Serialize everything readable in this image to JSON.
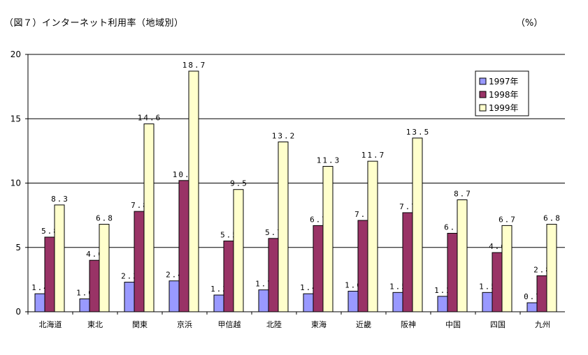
{
  "header": {
    "title": "（図７）インターネット利用率（地域別）",
    "unit": "（%）"
  },
  "chart_data": {
    "type": "bar",
    "title": "（図７）インターネット利用率（地域別）",
    "xlabel": "",
    "ylabel": "",
    "ylim": [
      0,
      20
    ],
    "yticks": [
      0,
      5,
      10,
      15,
      20
    ],
    "grid": true,
    "legend_position": "top-right",
    "categories": [
      "北海道",
      "東北",
      "関東",
      "京浜",
      "甲信越",
      "北陸",
      "東海",
      "近畿",
      "阪神",
      "中国",
      "四国",
      "九州"
    ],
    "series": [
      {
        "name": "1997年",
        "color": "#9999ff",
        "values": [
          1.4,
          1.0,
          2.3,
          2.4,
          1.3,
          1.7,
          1.4,
          1.6,
          1.5,
          1.2,
          1.5,
          0.7
        ],
        "labels": [
          "1.4",
          "1.0",
          "2.3",
          "2.4",
          "1.3",
          "1.7",
          "1.4",
          "1.6",
          "1.5",
          "1.2",
          "1.5",
          "0.7"
        ]
      },
      {
        "name": "1998年",
        "color": "#993366",
        "values": [
          5.8,
          4.0,
          7.8,
          10.2,
          5.5,
          5.7,
          6.7,
          7.1,
          7.7,
          6.1,
          4.6,
          2.8
        ],
        "labels": [
          "5.8",
          "4.0",
          "7.8",
          "10.2",
          "5.5",
          "5.7",
          "6.7",
          "7.1",
          "7.7",
          "6.1",
          "4.6",
          "2.8"
        ]
      },
      {
        "name": "1999年",
        "color": "#ffffcc",
        "values": [
          8.3,
          6.8,
          14.6,
          18.7,
          9.5,
          13.2,
          11.3,
          11.7,
          13.5,
          8.7,
          6.7,
          6.8
        ],
        "labels": [
          "8.3",
          "6.8",
          "14.6",
          "18.7",
          "9.5",
          "13.2",
          "11.3",
          "11.7",
          "13.5",
          "8.7",
          "6.7",
          "6.8"
        ]
      }
    ]
  }
}
